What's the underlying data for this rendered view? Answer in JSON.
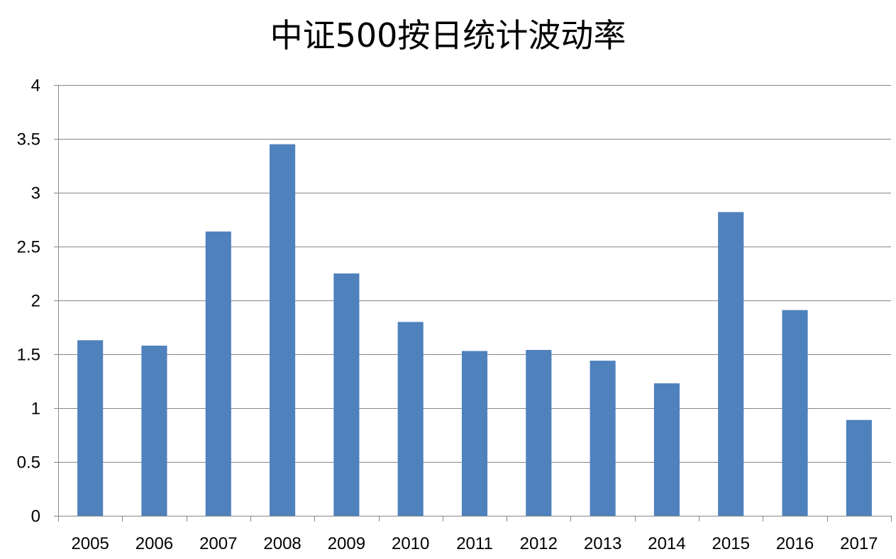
{
  "chart_data": {
    "type": "bar",
    "title": "中证500按日统计波动率",
    "xlabel": "",
    "ylabel": "",
    "categories": [
      "2005",
      "2006",
      "2007",
      "2008",
      "2009",
      "2010",
      "2011",
      "2012",
      "2013",
      "2014",
      "2015",
      "2016",
      "2017"
    ],
    "values": [
      1.63,
      1.58,
      2.64,
      3.45,
      2.25,
      1.8,
      1.53,
      1.54,
      1.44,
      1.23,
      2.82,
      1.91,
      0.89
    ],
    "ylim": [
      0,
      4
    ],
    "yticks": [
      "0",
      "0.5",
      "1",
      "1.5",
      "2",
      "2.5",
      "3",
      "3.5",
      "4"
    ],
    "grid": true,
    "legend": "none",
    "colors": {
      "bar": "#4F81BD",
      "grid": "#868686",
      "axis": "#868686",
      "text": "#000000"
    }
  }
}
